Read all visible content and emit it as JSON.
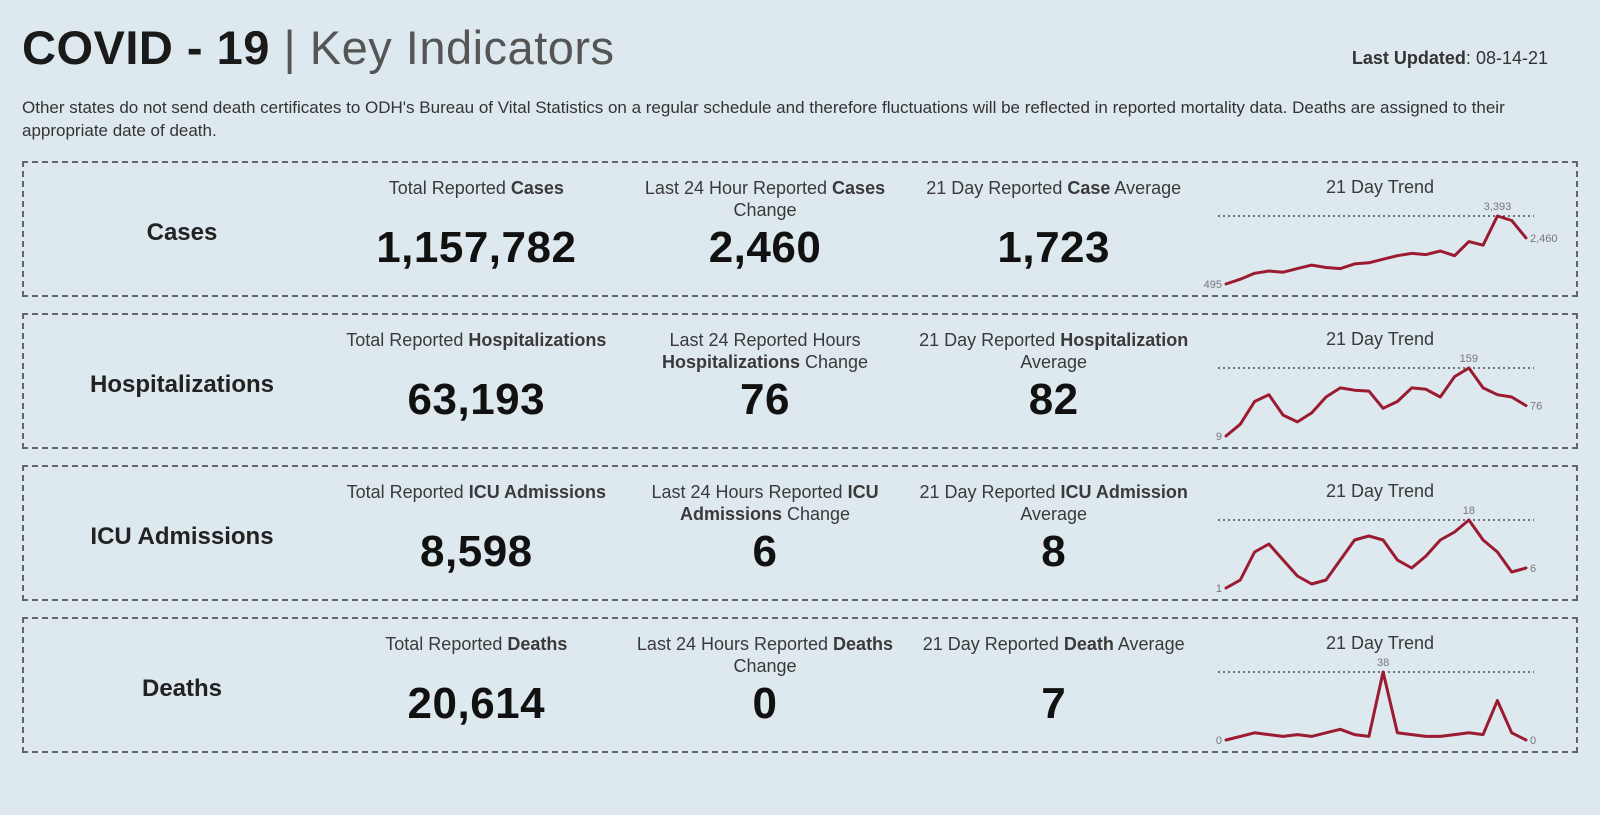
{
  "background_color": "#dee8ef",
  "header": {
    "title_bold": "COVID - 19",
    "title_separator": " | ",
    "title_light": "Key Indicators",
    "last_updated_label": "Last Updated",
    "last_updated_value": "08-14-21"
  },
  "subtitle": "Other states do not send death certificates to ODH's Bureau of Vital Statistics on a regular schedule and therefore fluctuations will be reflected in reported mortality data. Deaths are assigned to their appropriate date of death.",
  "trend_line_color": "#9b1b30",
  "cards": [
    {
      "label": "Cases",
      "metric1": {
        "pre": "Total Reported ",
        "bold": "Cases",
        "post": "",
        "value": "1,157,782"
      },
      "metric2": {
        "pre": "Last 24 Hour Reported ",
        "bold": "Cases",
        "post": " Change",
        "value": "2,460"
      },
      "metric3": {
        "pre": "21 Day Reported ",
        "bold": "Case",
        "post": " Average",
        "value": "1,723"
      },
      "trend": {
        "title": "21 Day Trend",
        "type": "sparkline",
        "first_label": "495",
        "peak_label": "3,393",
        "last_label": "2,460",
        "values": [
          495,
          700,
          950,
          1050,
          1000,
          1150,
          1300,
          1200,
          1150,
          1350,
          1400,
          1550,
          1700,
          1800,
          1750,
          1900,
          1700,
          2300,
          2150,
          3393,
          3200,
          2460
        ],
        "show_topline": true,
        "topline_value": 3393
      }
    },
    {
      "label": "Hospitalizations",
      "metric1": {
        "pre": "Total Reported ",
        "bold": "Hospitalizations",
        "post": "",
        "value": "63,193"
      },
      "metric2": {
        "pre": "Last 24 Reported Hours ",
        "bold": "Hospitalizations",
        "post": " Change",
        "value": "76"
      },
      "metric3": {
        "pre": "21 Day Reported ",
        "bold": "Hospitalization",
        "post": " Average",
        "value": "82"
      },
      "trend": {
        "title": "21 Day Trend",
        "type": "sparkline",
        "first_label": "9",
        "peak_label": "159",
        "last_label": "76",
        "values": [
          9,
          35,
          85,
          100,
          55,
          40,
          60,
          95,
          115,
          110,
          108,
          70,
          85,
          115,
          112,
          95,
          140,
          159,
          115,
          100,
          95,
          76
        ],
        "show_topline": true,
        "topline_value": 159
      }
    },
    {
      "label": "ICU Admissions",
      "metric1": {
        "pre": "Total Reported ",
        "bold": "ICU Admissions",
        "post": "",
        "value": "8,598"
      },
      "metric2": {
        "pre": "Last 24 Hours Reported ",
        "bold": "ICU Admissions",
        "post": " Change",
        "value": "6"
      },
      "metric3": {
        "pre": "21 Day Reported ",
        "bold": "ICU Admission",
        "post": " Average",
        "value": "8"
      },
      "trend": {
        "title": "21 Day Trend",
        "type": "sparkline",
        "first_label": "1",
        "peak_label": "18",
        "last_label": "6",
        "values": [
          1,
          3,
          10,
          12,
          8,
          4,
          2,
          3,
          8,
          13,
          14,
          13,
          8,
          6,
          9,
          13,
          15,
          18,
          13,
          10,
          5,
          6
        ],
        "show_topline": true,
        "topline_value": 18
      }
    },
    {
      "label": "Deaths",
      "metric1": {
        "pre": "Total Reported ",
        "bold": "Deaths",
        "post": "",
        "value": "20,614"
      },
      "metric2": {
        "pre": "Last 24 Hours Reported ",
        "bold": "Deaths",
        "post": " Change",
        "value": "0"
      },
      "metric3": {
        "pre": "21 Day Reported ",
        "bold": "Death",
        "post": " Average",
        "value": "7"
      },
      "trend": {
        "title": "21 Day Trend",
        "type": "sparkline",
        "first_label": "0",
        "peak_label": "38",
        "last_label": "0",
        "values": [
          0,
          2,
          4,
          3,
          2,
          3,
          2,
          4,
          6,
          3,
          2,
          38,
          4,
          3,
          2,
          2,
          3,
          4,
          3,
          22,
          4,
          0
        ],
        "show_topline": true,
        "topline_value": 38
      }
    }
  ]
}
